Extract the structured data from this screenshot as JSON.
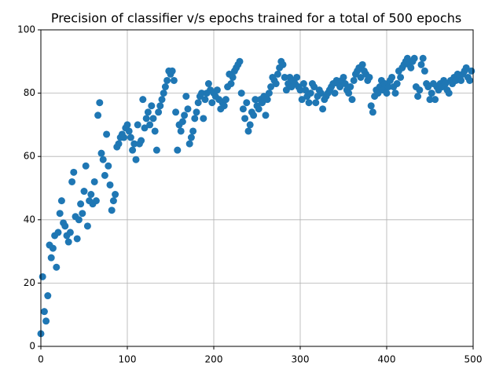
{
  "chart_data": {
    "type": "scatter",
    "title": "Precision of classifier v/s epochs trained for a total of 500 epochs",
    "color": "#1f77b4",
    "grid": true,
    "xlim": [
      0,
      500
    ],
    "xticks": [
      0,
      100,
      200,
      300,
      400,
      500
    ],
    "ylim": [
      0,
      100
    ],
    "yticks": [
      0,
      20,
      40,
      60,
      80,
      100
    ],
    "x": [
      0,
      2,
      4,
      6,
      8,
      10,
      12,
      14,
      16,
      18,
      20,
      22,
      24,
      26,
      28,
      30,
      32,
      34,
      36,
      38,
      40,
      42,
      44,
      46,
      48,
      50,
      52,
      54,
      56,
      58,
      60,
      62,
      64,
      66,
      68,
      70,
      72,
      74,
      76,
      78,
      80,
      82,
      84,
      86,
      88,
      90,
      92,
      94,
      96,
      98,
      100,
      102,
      104,
      106,
      108,
      110,
      112,
      114,
      116,
      118,
      120,
      122,
      124,
      126,
      128,
      130,
      132,
      134,
      136,
      138,
      140,
      142,
      144,
      146,
      148,
      150,
      152,
      154,
      156,
      158,
      160,
      162,
      164,
      166,
      168,
      170,
      172,
      174,
      176,
      178,
      180,
      182,
      184,
      186,
      188,
      190,
      192,
      194,
      196,
      198,
      200,
      202,
      204,
      206,
      208,
      210,
      212,
      214,
      216,
      218,
      220,
      222,
      224,
      226,
      228,
      230,
      232,
      234,
      236,
      238,
      240,
      242,
      244,
      246,
      248,
      250,
      252,
      254,
      256,
      258,
      260,
      262,
      264,
      266,
      268,
      270,
      272,
      274,
      276,
      278,
      280,
      282,
      284,
      286,
      288,
      290,
      292,
      294,
      296,
      298,
      300,
      302,
      304,
      306,
      308,
      310,
      312,
      314,
      316,
      318,
      320,
      322,
      324,
      326,
      328,
      330,
      332,
      334,
      336,
      338,
      340,
      342,
      344,
      346,
      348,
      350,
      352,
      354,
      356,
      358,
      360,
      362,
      364,
      366,
      368,
      370,
      372,
      374,
      376,
      378,
      380,
      382,
      384,
      386,
      388,
      390,
      392,
      394,
      396,
      398,
      400,
      402,
      404,
      406,
      408,
      410,
      412,
      414,
      416,
      418,
      420,
      422,
      424,
      426,
      428,
      430,
      432,
      434,
      436,
      438,
      440,
      442,
      444,
      446,
      448,
      450,
      452,
      454,
      456,
      458,
      460,
      462,
      464,
      466,
      468,
      470,
      472,
      474,
      476,
      478,
      480,
      482,
      484,
      486,
      488,
      490,
      492,
      494,
      496,
      498
    ],
    "values": [
      4,
      22,
      11,
      8,
      16,
      32,
      28,
      31,
      35,
      25,
      36,
      42,
      46,
      39,
      38,
      35,
      33,
      36,
      52,
      55,
      41,
      34,
      40,
      45,
      42,
      49,
      57,
      38,
      46,
      48,
      45,
      52,
      46,
      73,
      77,
      61,
      59,
      54,
      67,
      57,
      51,
      43,
      46,
      48,
      63,
      64,
      66,
      67,
      66,
      69,
      70,
      68,
      66,
      62,
      64,
      59,
      70,
      64,
      65,
      78,
      69,
      72,
      74,
      70,
      76,
      72,
      68,
      62,
      74,
      76,
      78,
      80,
      82,
      84,
      87,
      86,
      87,
      84,
      74,
      62,
      70,
      68,
      71,
      73,
      79,
      75,
      64,
      66,
      68,
      72,
      74,
      77,
      79,
      80,
      72,
      78,
      80,
      83,
      81,
      77,
      80,
      79,
      81,
      78,
      75,
      77,
      76,
      78,
      82,
      86,
      83,
      85,
      87,
      88,
      89,
      90,
      80,
      75,
      72,
      77,
      68,
      70,
      74,
      73,
      78,
      76,
      75,
      78,
      77,
      79,
      73,
      78,
      80,
      82,
      85,
      84,
      83,
      86,
      88,
      90,
      89,
      85,
      81,
      83,
      85,
      82,
      84,
      83,
      85,
      82,
      81,
      78,
      83,
      81,
      79,
      77,
      80,
      83,
      82,
      77,
      79,
      81,
      80,
      75,
      78,
      79,
      80,
      81,
      82,
      83,
      80,
      84,
      83,
      82,
      84,
      85,
      83,
      81,
      80,
      82,
      78,
      84,
      86,
      87,
      88,
      85,
      89,
      87,
      86,
      84,
      85,
      76,
      74,
      79,
      81,
      80,
      82,
      84,
      81,
      83,
      80,
      82,
      84,
      85,
      82,
      80,
      83,
      87,
      85,
      88,
      89,
      90,
      91,
      89,
      88,
      90,
      91,
      82,
      79,
      81,
      89,
      91,
      87,
      83,
      82,
      78,
      80,
      83,
      78,
      82,
      81,
      83,
      82,
      84,
      83,
      81,
      80,
      84,
      83,
      85,
      84,
      86,
      85,
      84,
      86,
      87,
      88,
      85,
      84,
      87
    ]
  }
}
